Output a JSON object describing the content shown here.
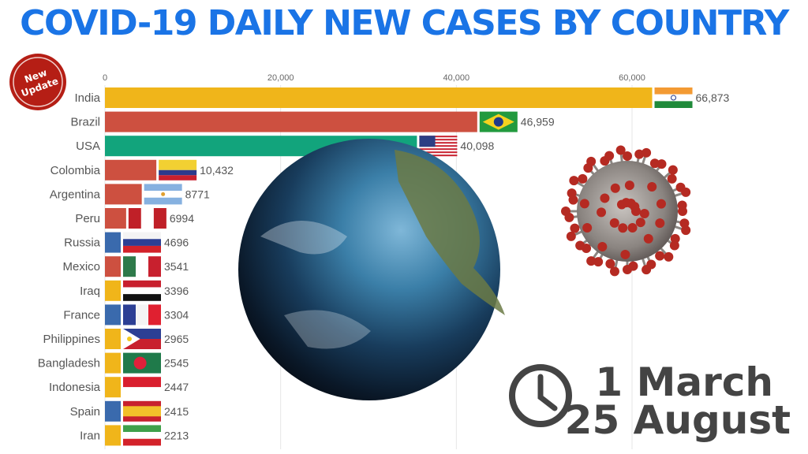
{
  "title": "COVID-19 DAILY NEW CASES BY COUNTRY",
  "badge": {
    "line1": "New",
    "line2": "Update"
  },
  "dates": {
    "start": "1 March",
    "end": "25 August"
  },
  "colors": {
    "title": "#1a74e6",
    "yellow": "#f0b51a",
    "red": "#cd5040",
    "green": "#12a47c",
    "blue": "#3a6aad"
  },
  "chart_data": {
    "type": "bar",
    "orientation": "horizontal",
    "title": "COVID-19 DAILY NEW CASES BY COUNTRY",
    "xlim": [
      0,
      66873
    ],
    "xticks": [
      0,
      20000,
      40000,
      60000
    ],
    "xtick_labels": [
      "0",
      "20,000",
      "40,000",
      "60,000"
    ],
    "categories": [
      "India",
      "Brazil",
      "USA",
      "Colombia",
      "Argentina",
      "Peru",
      "Russia",
      "Mexico",
      "Iraq",
      "France",
      "Philippines",
      "Bangladesh",
      "Indonesia",
      "Spain",
      "Iran"
    ],
    "values": [
      66873,
      46959,
      40098,
      10432,
      8771,
      6994,
      4696,
      3541,
      3396,
      3304,
      2965,
      2545,
      2447,
      2415,
      2213
    ],
    "value_labels": [
      "66,873",
      "46,959",
      "40,098",
      "10,432",
      "8771",
      "6994",
      "4696",
      "3541",
      "3396",
      "3304",
      "2965",
      "2545",
      "2447",
      "2415",
      "2213"
    ],
    "bar_colors": [
      "yellow",
      "red",
      "green",
      "red",
      "red",
      "red",
      "blue",
      "red",
      "yellow",
      "blue",
      "yellow",
      "yellow",
      "yellow",
      "blue",
      "yellow"
    ]
  }
}
